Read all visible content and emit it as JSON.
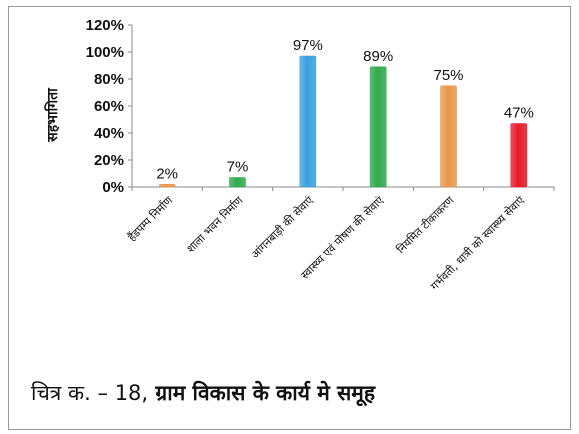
{
  "chart_data": {
    "type": "bar",
    "title": "",
    "ylabel": "सहभागिता",
    "xlabel": "",
    "ylim": [
      0,
      120
    ],
    "yticks": [
      "0%",
      "20%",
      "40%",
      "60%",
      "80%",
      "100%",
      "120%"
    ],
    "grid": false,
    "categories": [
      "हैंडपम्प निर्माण",
      "शाला भवन निर्माण",
      "आंगनबाड़ी की सेवाएं",
      "स्वास्थ्य एवं पोषण की सेवाएं",
      "नियमित टीकाकरण",
      "गर्भवती, धात्री को स्वास्थ्य सेवाएं"
    ],
    "values": [
      2,
      7,
      97,
      89,
      75,
      47
    ],
    "data_labels": [
      "2%",
      "7%",
      "97%",
      "89%",
      "75%",
      "47%"
    ],
    "bar_colors": [
      "#e8974a",
      "#2eaa4c",
      "#3aa0e0",
      "#2eaa4c",
      "#e8974a",
      "#e8182a"
    ]
  },
  "caption": {
    "prefix": "चित्र क.  – 18,",
    "title": " ग्राम विकास के  कार्य मे समूह"
  }
}
